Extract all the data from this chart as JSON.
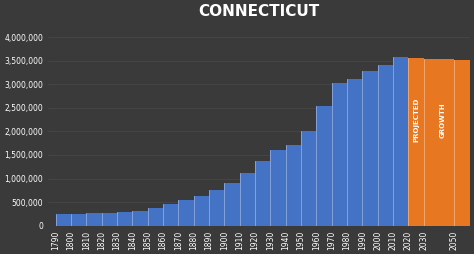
{
  "title": "CONNECTICUT",
  "background_color": "#3a3a3a",
  "bar_color_blue": "#4472c4",
  "bar_color_orange": "#e87722",
  "text_color": "white",
  "years": [
    1790,
    1800,
    1810,
    1820,
    1830,
    1840,
    1850,
    1860,
    1870,
    1880,
    1890,
    1900,
    1910,
    1920,
    1930,
    1940,
    1950,
    1960,
    1970,
    1980,
    1990,
    2000,
    2010,
    2020,
    2030,
    2050
  ],
  "population": [
    238000,
    251000,
    262000,
    275000,
    298000,
    310000,
    371000,
    460000,
    537000,
    623000,
    746000,
    908000,
    1115000,
    1381000,
    1607000,
    1709000,
    2007000,
    2535000,
    3032000,
    3108000,
    3287000,
    3406000,
    3574000,
    3565000,
    3530000,
    3510000
  ],
  "projected_start_year": 2020,
  "ylim": [
    0,
    4300000
  ],
  "yticks": [
    0,
    500000,
    1000000,
    1500000,
    2000000,
    2500000,
    3000000,
    3500000,
    4000000
  ],
  "ytick_labels": [
    "0",
    "500,000",
    "1,000,000",
    "1,500,000",
    "2,000,000",
    "2,500,000",
    "3,000,000",
    "3,500,000",
    "4,000,000"
  ],
  "label_projected": "PROJECTED",
  "label_growth": "GROWTH",
  "title_fontsize": 11,
  "tick_fontsize": 5.5,
  "xtick_years": [
    1790,
    1800,
    1810,
    1820,
    1830,
    1840,
    1850,
    1860,
    1870,
    1880,
    1890,
    1900,
    1910,
    1920,
    1930,
    1940,
    1950,
    1960,
    1970,
    1980,
    1990,
    2000,
    2010,
    2020,
    2030,
    2050
  ]
}
